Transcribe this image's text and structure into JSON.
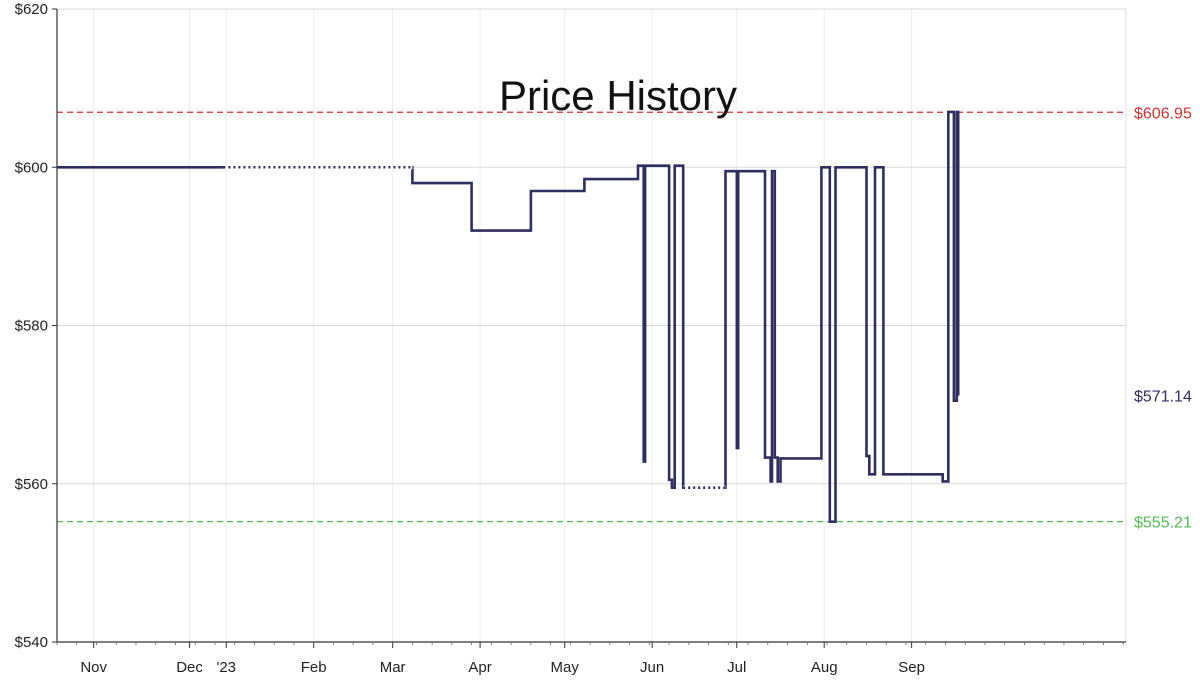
{
  "chart_data": {
    "type": "line",
    "title": "Price History",
    "xlabel": "",
    "ylabel": "",
    "ylim": [
      540,
      620
    ],
    "y_ticks": [
      540,
      560,
      580,
      600,
      620
    ],
    "y_tick_labels": [
      "$540",
      "$560",
      "$580",
      "$600",
      "$620"
    ],
    "x_range_days": [
      -60,
      319
    ],
    "x_ticks": [
      {
        "label": "Nov",
        "day": -47
      },
      {
        "label": "Dec",
        "day": -13
      },
      {
        "label": "'23",
        "day": 0
      },
      {
        "label": "Feb",
        "day": 31
      },
      {
        "label": "Mar",
        "day": 59
      },
      {
        "label": "Apr",
        "day": 90
      },
      {
        "label": "May",
        "day": 120
      },
      {
        "label": "Jun",
        "day": 151
      },
      {
        "label": "Jul",
        "day": 181
      },
      {
        "label": "Aug",
        "day": 212
      },
      {
        "label": "Sep",
        "day": 243
      }
    ],
    "grid": true,
    "reference_lines": [
      {
        "label": "$606.95",
        "value": 606.95,
        "color": "#cc3333",
        "style": "dashed"
      },
      {
        "label": "$555.21",
        "value": 555.21,
        "color": "#55bb55",
        "style": "dashed"
      }
    ],
    "last_value_label": {
      "label": "$571.14",
      "value": 571.14,
      "color": "#2f2f5f"
    },
    "series": [
      {
        "color": "#2f2f5f",
        "points": [
          [
            -60,
            600
          ],
          [
            -1,
            600
          ],
          [
            66,
            600
          ],
          [
            66,
            598
          ],
          [
            87,
            598
          ],
          [
            87,
            592
          ],
          [
            108,
            592
          ],
          [
            108,
            597
          ],
          [
            127,
            597
          ],
          [
            127,
            598.5
          ],
          [
            146,
            598.5
          ],
          [
            146,
            600.2
          ],
          [
            148,
            600.2
          ],
          [
            148,
            562.8
          ],
          [
            148.5,
            562.8
          ],
          [
            148.5,
            600.2
          ],
          [
            157,
            600.2
          ],
          [
            157,
            560.5
          ],
          [
            158,
            560.5
          ],
          [
            158,
            559.5
          ],
          [
            159,
            559.5
          ],
          [
            159,
            600.2
          ],
          [
            162,
            600.2
          ],
          [
            162,
            559.5
          ],
          [
            177,
            559.5
          ],
          [
            177,
            599.5
          ],
          [
            181,
            599.5
          ],
          [
            181,
            564.5
          ],
          [
            181.5,
            564.5
          ],
          [
            181.5,
            599.5
          ],
          [
            191,
            599.5
          ],
          [
            191,
            563.3
          ],
          [
            193,
            563.3
          ],
          [
            193,
            560.3
          ],
          [
            193.5,
            560.3
          ],
          [
            193.5,
            599.5
          ],
          [
            194.5,
            599.5
          ],
          [
            194.5,
            563.3
          ],
          [
            195.5,
            563.3
          ],
          [
            195.5,
            560.3
          ],
          [
            196.5,
            560.3
          ],
          [
            196.5,
            563.2
          ],
          [
            211,
            563.2
          ],
          [
            211,
            600
          ],
          [
            214,
            600
          ],
          [
            214,
            555.2
          ],
          [
            216,
            555.2
          ],
          [
            216,
            600
          ],
          [
            227,
            600
          ],
          [
            227,
            563.5
          ],
          [
            228,
            563.5
          ],
          [
            228,
            561.2
          ],
          [
            230,
            561.2
          ],
          [
            230,
            600
          ],
          [
            233,
            600
          ],
          [
            233,
            561.2
          ],
          [
            254,
            561.2
          ],
          [
            254,
            560.3
          ],
          [
            256,
            560.3
          ],
          [
            256,
            607
          ],
          [
            258,
            607
          ],
          [
            258,
            570.5
          ],
          [
            259,
            570.5
          ],
          [
            259,
            607
          ],
          [
            259.5,
            607
          ],
          [
            259.5,
            571.14
          ]
        ],
        "dotted_gaps": [
          {
            "from": [
              -1,
              600
            ],
            "to": [
              66,
              600
            ]
          },
          {
            "from": [
              162,
              559.5
            ],
            "to": [
              177,
              559.5
            ]
          }
        ]
      }
    ]
  }
}
